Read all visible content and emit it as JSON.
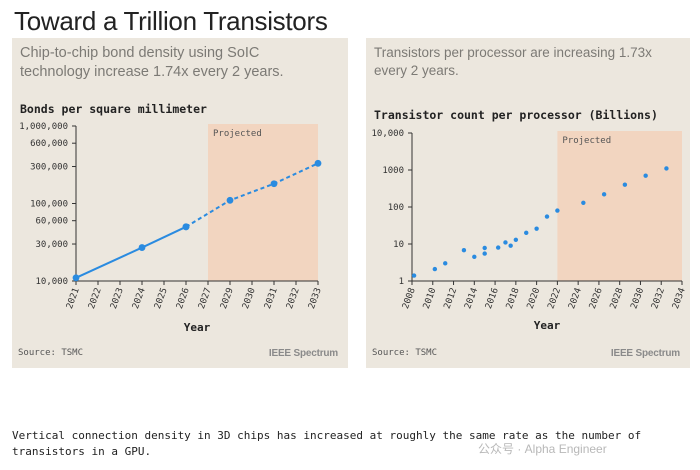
{
  "page": {
    "title": "Toward a Trillion Transistors",
    "caption": "Vertical connection density in 3D chips has increased at roughly the same rate as the number of transistors in a GPU.",
    "watermark": "公众号 · Alpha Engineer"
  },
  "colors": {
    "panel_bg": "#ece7de",
    "projected_fill": "#f2d5c0",
    "series": "#2a8be0"
  },
  "panels": {
    "left": {
      "subtitle_line1": "Chip-to-chip bond density using SoIC",
      "subtitle_line2": "technology increase 1.74x every 2 years.",
      "source": "Source: TSMC",
      "brand": "IEEE Spectrum"
    },
    "right": {
      "subtitle_line1": "Transistors per processor are increasing 1.73x",
      "subtitle_line2": "every 2 years.",
      "source": "Source: TSMC",
      "brand": "IEEE Spectrum"
    }
  },
  "chart_data": [
    {
      "type": "line",
      "title": "Bonds per square millimeter",
      "xlabel": "Year",
      "ylabel": "",
      "yscale": "log",
      "ylim": [
        10000,
        1000000
      ],
      "yticks": [
        1000000,
        600000,
        300000,
        100000,
        60000,
        30000,
        10000
      ],
      "ytick_labels": [
        "1,000,000",
        "600,000",
        "300,000",
        "100,000",
        "60,000",
        "30,000",
        "10,000"
      ],
      "x_categories": [
        "2021",
        "2022",
        "2023",
        "2024",
        "2025",
        "2026",
        "2027",
        "2029",
        "2030",
        "2031",
        "2032",
        "2033"
      ],
      "projected_label": "Projected",
      "projected_range": [
        "2027",
        "2033"
      ],
      "series": [
        {
          "values": [
            {
              "x": "2021",
              "y": 11000
            },
            {
              "x": "2024",
              "y": 27000
            },
            {
              "x": "2026",
              "y": 50000
            }
          ],
          "style": "solid"
        },
        {
          "values": [
            {
              "x": "2026",
              "y": 50000
            },
            {
              "x": "2029",
              "y": 110000
            },
            {
              "x": "2031",
              "y": 180000
            },
            {
              "x": "2033",
              "y": 330000
            }
          ],
          "style": "dashed"
        }
      ]
    },
    {
      "type": "scatter",
      "title": "Transistor count per processor (Billions)",
      "xlabel": "Year",
      "ylabel": "",
      "yscale": "log",
      "ylim": [
        1,
        10000
      ],
      "yticks": [
        10000,
        1000,
        100,
        10,
        1
      ],
      "ytick_labels": [
        "10,000",
        "1000",
        "100",
        "10",
        "1"
      ],
      "xticks": [
        "2008",
        "2010",
        "2012",
        "2014",
        "2016",
        "2018",
        "2020",
        "2022",
        "2024",
        "2026",
        "2028",
        "2030",
        "2032",
        "2034"
      ],
      "xlim": [
        2008,
        2034
      ],
      "projected_label": "Projected",
      "projected_range": [
        2022,
        2034
      ],
      "points": [
        {
          "x": 2008.2,
          "y": 1.4
        },
        {
          "x": 2010.2,
          "y": 2.1
        },
        {
          "x": 2011.2,
          "y": 3.0
        },
        {
          "x": 2013.0,
          "y": 6.8
        },
        {
          "x": 2014.0,
          "y": 4.5
        },
        {
          "x": 2015.0,
          "y": 5.5
        },
        {
          "x": 2015.0,
          "y": 7.8
        },
        {
          "x": 2016.3,
          "y": 8.0
        },
        {
          "x": 2017.0,
          "y": 11.0
        },
        {
          "x": 2017.5,
          "y": 9.0
        },
        {
          "x": 2018.0,
          "y": 13.0
        },
        {
          "x": 2019.0,
          "y": 20.0
        },
        {
          "x": 2020.0,
          "y": 26.0
        },
        {
          "x": 2021.0,
          "y": 55.0
        },
        {
          "x": 2022.0,
          "y": 80.0
        },
        {
          "x": 2024.5,
          "y": 130.0
        },
        {
          "x": 2026.5,
          "y": 220.0
        },
        {
          "x": 2028.5,
          "y": 400.0
        },
        {
          "x": 2030.5,
          "y": 700.0
        },
        {
          "x": 2032.5,
          "y": 1100.0
        }
      ]
    }
  ]
}
